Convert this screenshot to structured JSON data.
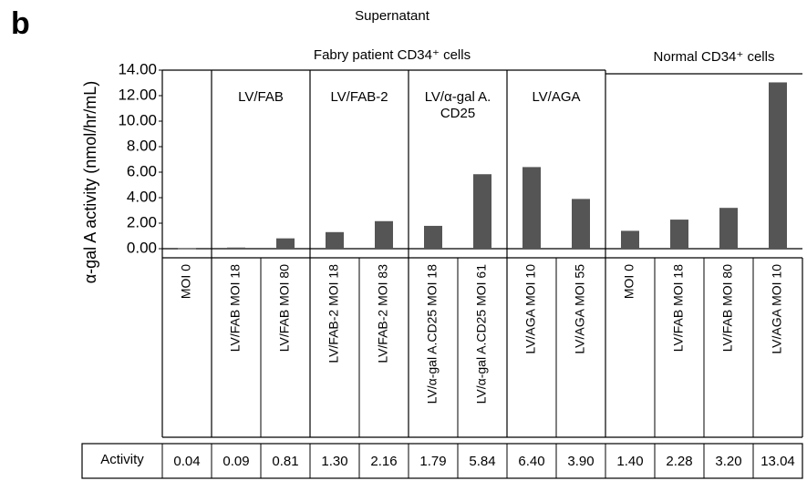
{
  "chart_data": {
    "type": "bar",
    "panel_label": "b",
    "title": "Supernatant",
    "super_groups": [
      "Fabry patient CD34⁺ cells",
      "Normal CD34⁺ cells"
    ],
    "groups": [
      "LV/FAB",
      "LV/FAB-2",
      "LV/α-gal A. CD25",
      "LV/AGA"
    ],
    "ylabel": "α-gal A activity (nmol/hr/mL)",
    "table_header": "Activity",
    "categories": [
      "MOI 0",
      "LV/FAB MOI 18",
      "LV/FAB MOI 80",
      "LV/FAB-2 MOI 18",
      "LV/FAB-2 MOI 83",
      "LV/α-gal A.CD25 MOI 18",
      "LV/α-gal A.CD25 MOI 61",
      "LV/AGA MOI 10",
      "LV/AGA MOI 55",
      "MOI 0",
      "LV/FAB MOI 18",
      "LV/FAB MOI 80",
      "LV/AGA MOI 10"
    ],
    "values": [
      0.04,
      0.09,
      0.81,
      1.3,
      2.16,
      1.79,
      5.84,
      6.4,
      3.9,
      1.4,
      2.28,
      3.2,
      13.04
    ],
    "value_labels": [
      "0.04",
      "0.09",
      "0.81",
      "1.30",
      "2.16",
      "1.79",
      "5.84",
      "6.40",
      "3.90",
      "1.40",
      "2.28",
      "3.20",
      "13.04"
    ],
    "color": "#555555",
    "ylim": [
      0,
      14
    ],
    "yticks": [
      {
        "value": 0,
        "label": "0.00"
      },
      {
        "value": 2,
        "label": "2.00"
      },
      {
        "value": 4,
        "label": "4.00"
      },
      {
        "value": 6,
        "label": "6.00"
      },
      {
        "value": 8,
        "label": "8.00"
      },
      {
        "value": 10,
        "label": "10.00"
      },
      {
        "value": 12,
        "label": "12.00"
      },
      {
        "value": 14,
        "label": "14.00"
      }
    ]
  }
}
